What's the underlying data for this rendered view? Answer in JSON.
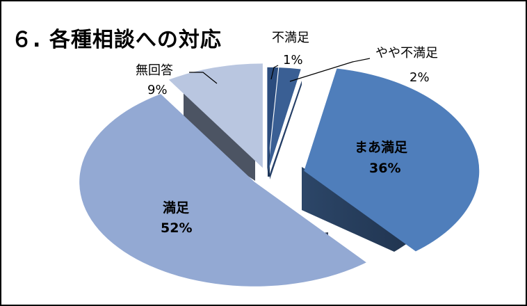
{
  "chart_data": {
    "type": "pie",
    "title": "６. 各種相談への対応",
    "slices": [
      {
        "label": "不満足",
        "value": 1,
        "percent_label": "1%",
        "color": "#2B4C7E"
      },
      {
        "label": "やや不満足",
        "value": 2,
        "percent_label": "2%",
        "color": "#3A5F94"
      },
      {
        "label": "まあ満足",
        "value": 36,
        "percent_label": "36%",
        "color": "#4F7EBB"
      },
      {
        "label": "満足",
        "value": 52,
        "percent_label": "52%",
        "color": "#93A9D3"
      },
      {
        "label": "無回答",
        "value": 9,
        "percent_label": "9%",
        "color": "#B9C6E0"
      }
    ]
  }
}
